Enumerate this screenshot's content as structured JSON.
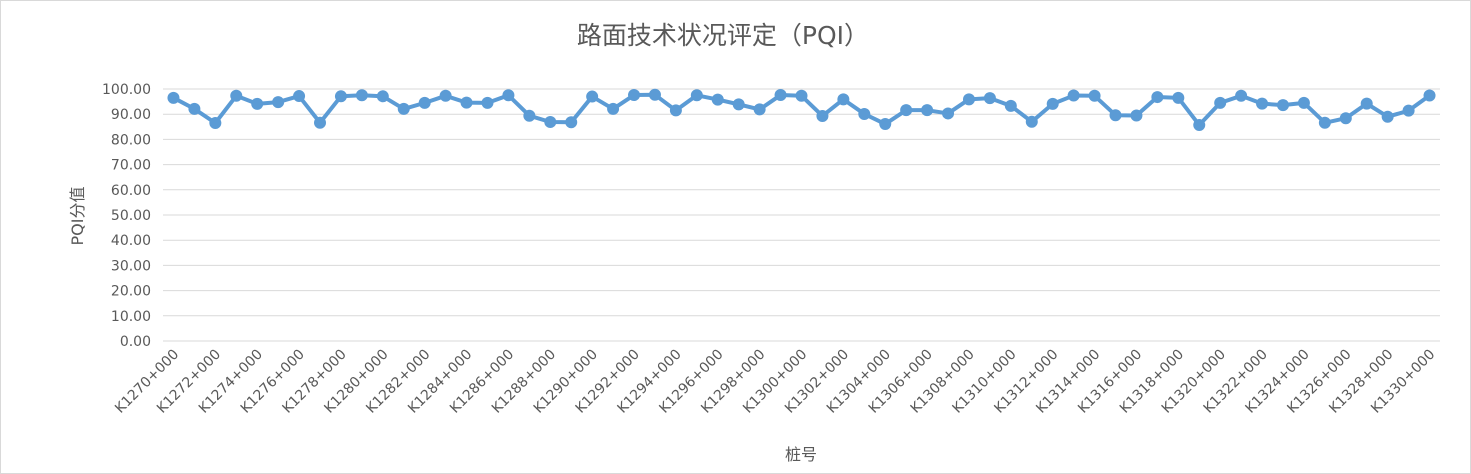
{
  "chart_data": {
    "type": "line",
    "title": "路面技术状况评定（PQI）",
    "xlabel": "桩号",
    "ylabel": "PQI分值",
    "ylim": [
      0,
      100
    ],
    "ytick_labels": [
      "0.00",
      "10.00",
      "20.00",
      "30.00",
      "40.00",
      "50.00",
      "60.00",
      "70.00",
      "80.00",
      "90.00",
      "100.00"
    ],
    "grid": true,
    "legend": "none",
    "x_tick_labels": [
      "K1270+000",
      "K1272+000",
      "K1274+000",
      "K1276+000",
      "K1278+000",
      "K1280+000",
      "K1282+000",
      "K1284+000",
      "K1286+000",
      "K1288+000",
      "K1290+000",
      "K1292+000",
      "K1294+000",
      "K1296+000",
      "K1298+000",
      "K1300+000",
      "K1302+000",
      "K1304+000",
      "K1306+000",
      "K1308+000",
      "K1310+000",
      "K1312+000",
      "K1314+000",
      "K1316+000",
      "K1318+000",
      "K1320+000",
      "K1322+000",
      "K1324+000",
      "K1326+000",
      "K1328+000",
      "K1330+000"
    ],
    "color": "#5b9bd5",
    "series": [
      {
        "values": [
          96.5,
          92.1,
          86.5,
          97.3,
          94.1,
          94.8,
          97.2,
          86.6,
          97.1,
          97.5,
          97.1,
          92.1,
          94.5,
          97.3,
          94.6,
          94.5,
          97.5,
          89.4,
          86.9,
          86.8,
          97.0,
          92.1,
          97.6,
          97.7,
          91.5,
          97.5,
          95.8,
          93.9,
          91.9,
          97.6,
          97.3,
          89.3,
          95.9,
          90.1,
          86.1,
          91.6,
          91.6,
          90.3,
          95.9,
          96.4,
          93.3,
          87.0,
          94.1,
          97.4,
          97.3,
          89.6,
          89.5,
          96.8,
          96.5,
          85.7,
          94.5,
          97.3,
          94.2,
          93.6,
          94.5,
          86.6,
          88.4,
          94.2,
          89.0,
          91.4,
          97.4
        ]
      }
    ]
  }
}
